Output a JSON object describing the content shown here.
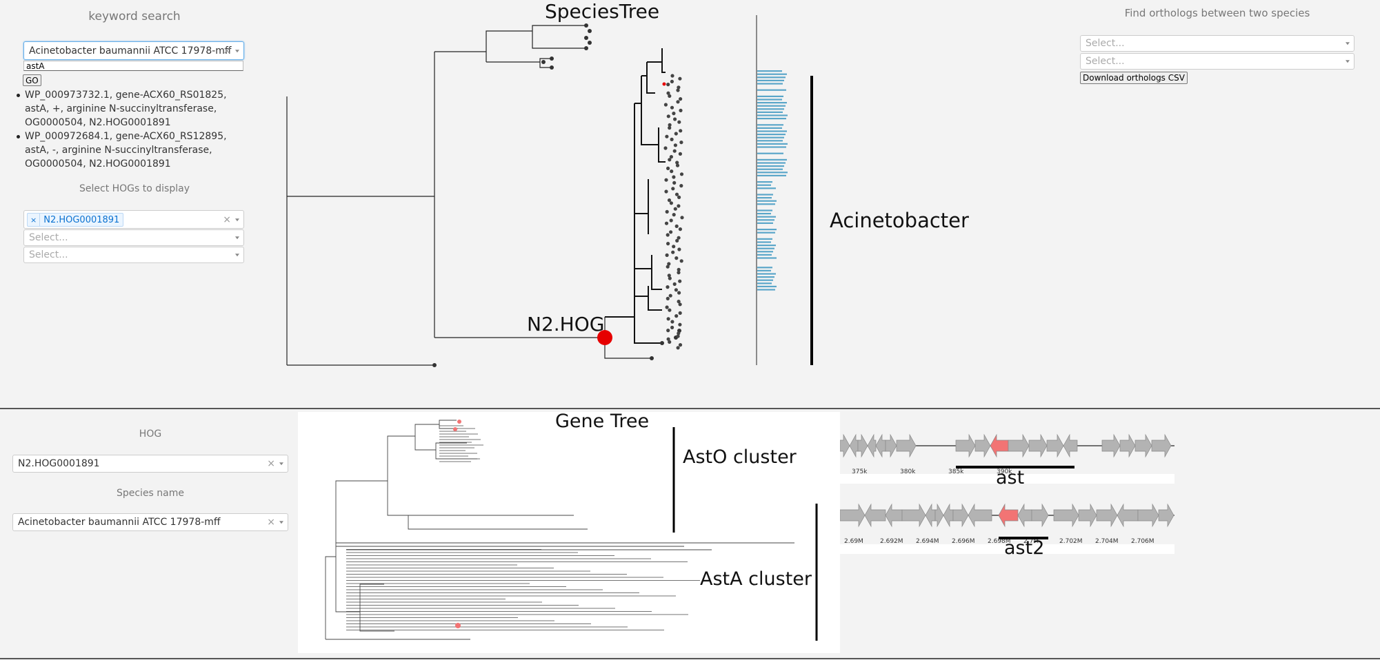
{
  "top_panel": {
    "keyword_search": {
      "heading": "keyword search",
      "species_select": {
        "value": "Acinetobacter baumannii ATCC 17978-mff",
        "clear": "×"
      },
      "keyword_input": {
        "value": "astA"
      },
      "go_button": "GO",
      "results": [
        "WP_000973732.1, gene-ACX60_RS01825, astA, +, arginine N-succinyltransferase, OG0000504, N2.HOG0001891",
        "WP_000972684.1, gene-ACX60_RS12895, astA, -, arginine N-succinyltransferase, OG0000504, N2.HOG0001891"
      ]
    },
    "hog_select": {
      "heading": "Select HOGs to display",
      "selected_chip": {
        "remove": "×",
        "label": "N2.HOG0001891"
      },
      "clear": "×",
      "placeholders": [
        "Select...",
        "Select..."
      ]
    },
    "species_tree": {
      "title": "SpeciesTree",
      "node_label": "N2.HOG",
      "clade_label": "Acinetobacter"
    },
    "orthologs": {
      "heading": "Find orthologs between two species",
      "placeholders": [
        "Select...",
        "Select..."
      ],
      "download_button": "Download orthologs CSV"
    }
  },
  "bottom_panel": {
    "hog_label": "HOG",
    "hog_select": {
      "value": "N2.HOG0001891",
      "clear": "×"
    },
    "species_label": "Species name",
    "species_select": {
      "value": "Acinetobacter baumannii ATCC 17978-mff",
      "clear": "×"
    },
    "gene_tree": {
      "title": "Gene Tree",
      "cluster_labels": [
        "AstO cluster",
        "AstA cluster"
      ]
    },
    "gene_maps": [
      {
        "label": "ast",
        "ticks": [
          "375k",
          "380k",
          "385k",
          "390k"
        ]
      },
      {
        "label": "ast2",
        "ticks": [
          "2.69M",
          "2.692M",
          "2.694M",
          "2.696M",
          "2.698M",
          "2.7M",
          "2.702M",
          "2.704M",
          "2.706M"
        ]
      }
    ]
  },
  "colors": {
    "highlight": "#f27474",
    "node_red": "#e60000",
    "bar_blue": "#5aa6c9",
    "gene_gray": "#b3b3b3"
  }
}
